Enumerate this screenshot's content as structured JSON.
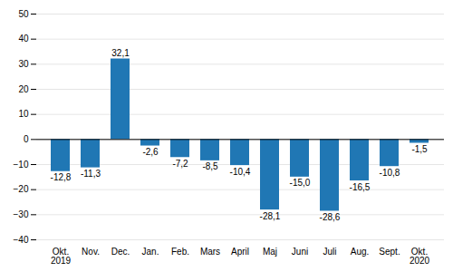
{
  "chart_data": {
    "type": "bar",
    "categories": [
      "Okt.\n2019",
      "Nov.",
      "Dec.",
      "Jan.",
      "Feb.",
      "Mars",
      "April",
      "Maj",
      "Juni",
      "Juli",
      "Aug.",
      "Sept.",
      "Okt.\n2020"
    ],
    "values": [
      -12.8,
      -11.3,
      32.1,
      -2.6,
      -7.2,
      -8.5,
      -10.4,
      -28.1,
      -15.0,
      -28.6,
      -16.5,
      -10.8,
      -1.5
    ],
    "value_labels": [
      "-12,8",
      "-11,3",
      "32,1",
      "-2,6",
      "-7,2",
      "-8,5",
      "-10,4",
      "-28,1",
      "-15,0",
      "-28,6",
      "-16,5",
      "-10,8",
      "-1,5"
    ],
    "data_labels": true,
    "color": "#2077b4",
    "ylim": [
      -40,
      50
    ],
    "yticks": [
      -40,
      -30,
      -20,
      -10,
      0,
      10,
      20,
      30,
      40,
      50
    ],
    "grid": true
  }
}
